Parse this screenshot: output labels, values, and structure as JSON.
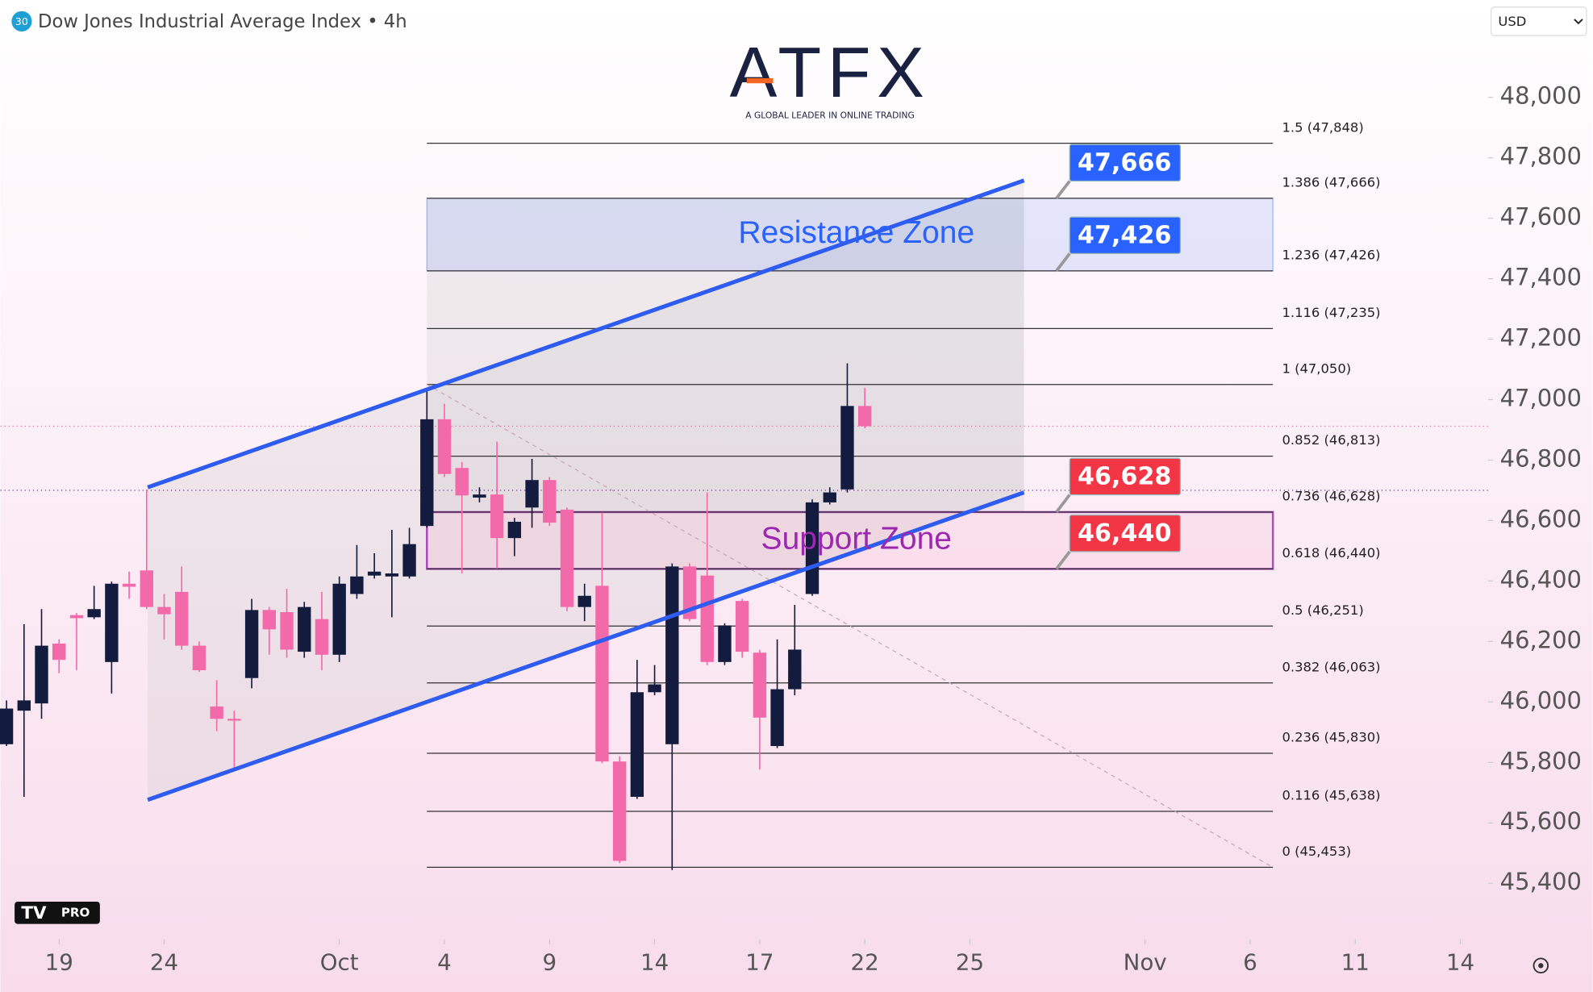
{
  "chart_data": {
    "type": "candlestick",
    "title": "Dow Jones Industrial Average Index • 4h",
    "symbol_badge": "30",
    "currency": "USD",
    "logo": "ATFX",
    "tagline": "A GLOBAL LEADER IN ONLINE TRADING",
    "platform_badge": "PRO",
    "up_color": "#131c3e",
    "down_color": "#f26aa9",
    "open": [
      45860,
      45971,
      45995,
      46193,
      46287,
      46280,
      46132,
      46391,
      46435,
      46314,
      46364,
      46186,
      45985,
      45944,
      46079,
      46304,
      46297,
      46166,
      46274,
      46156,
      46357,
      46418,
      46415,
      46415,
      46582,
      46935,
      46774,
      46676,
      46686,
      46542,
      46643,
      46734,
      46636,
      46314,
      46384,
      45803,
      45686,
      46032,
      45860,
      46448,
      46418,
      46132,
      46334,
      46163,
      45854,
      46042,
      46357,
      46660,
      46703,
      46979
    ],
    "high": [
      46005,
      46257,
      46307,
      46207,
      46294,
      46384,
      46398,
      46431,
      46703,
      46357,
      46448,
      46200,
      46072,
      45971,
      46341,
      46314,
      46374,
      46331,
      46364,
      46415,
      46519,
      46492,
      46569,
      46576,
      47029,
      46986,
      46794,
      46710,
      46861,
      46609,
      46804,
      46744,
      46643,
      46391,
      46626,
      45820,
      46139,
      46122,
      46458,
      46458,
      46693,
      46260,
      46341,
      46173,
      46207,
      46321,
      46670,
      46710,
      47120,
      47039
    ],
    "low": [
      45854,
      45686,
      45944,
      46095,
      46105,
      46274,
      46028,
      46341,
      46307,
      46207,
      46173,
      46099,
      45904,
      45776,
      46045,
      46156,
      46146,
      46146,
      46105,
      46132,
      46341,
      46408,
      46280,
      46408,
      46576,
      46744,
      46425,
      46660,
      46441,
      46482,
      46576,
      46582,
      46300,
      46267,
      45797,
      45467,
      45679,
      46022,
      45444,
      46267,
      46122,
      46122,
      46146,
      45776,
      45847,
      46022,
      46351,
      46653,
      46693,
      46905
    ],
    "close": [
      45978,
      46005,
      46186,
      46139,
      46277,
      46307,
      46391,
      46381,
      46314,
      46290,
      46186,
      46105,
      45944,
      45938,
      46304,
      46240,
      46173,
      46314,
      46156,
      46391,
      46415,
      46431,
      46425,
      46522,
      46935,
      46754,
      46683,
      46686,
      46542,
      46596,
      46734,
      46593,
      46314,
      46351,
      45803,
      45474,
      46032,
      46058,
      46448,
      46274,
      46132,
      46253,
      46166,
      45948,
      46042,
      46173,
      46660,
      46693,
      46979,
      46912
    ],
    "xlim": [
      -0.35,
      84.58
    ],
    "xticks": [
      {
        "value": 3,
        "label": "19"
      },
      {
        "value": 9,
        "label": "24"
      },
      {
        "value": 19,
        "label": "Oct"
      },
      {
        "value": 25,
        "label": "4"
      },
      {
        "value": 31,
        "label": "9"
      },
      {
        "value": 37,
        "label": "14"
      },
      {
        "value": 43,
        "label": "17"
      },
      {
        "value": 49,
        "label": "22"
      },
      {
        "value": 55,
        "label": "25"
      },
      {
        "value": 65,
        "label": "Nov"
      },
      {
        "value": 71,
        "label": "6"
      },
      {
        "value": 77,
        "label": "11"
      },
      {
        "value": 83,
        "label": "14"
      }
    ],
    "ylim": [
      45215,
      48322
    ],
    "yticks": [
      {
        "value": 45400,
        "label": "45,400"
      },
      {
        "value": 45600,
        "label": "45,600"
      },
      {
        "value": 45800,
        "label": "45,800"
      },
      {
        "value": 46000,
        "label": "46,000"
      },
      {
        "value": 46200,
        "label": "46,200"
      },
      {
        "value": 46400,
        "label": "46,400"
      },
      {
        "value": 46600,
        "label": "46,600"
      },
      {
        "value": 46800,
        "label": "46,800"
      },
      {
        "value": 47000,
        "label": "47,000"
      },
      {
        "value": 47200,
        "label": "47,200"
      },
      {
        "value": 47400,
        "label": "47,400"
      },
      {
        "value": 47600,
        "label": "47,600"
      },
      {
        "value": 47800,
        "label": "47,800"
      },
      {
        "value": 48000,
        "label": "48,000"
      }
    ],
    "fib_levels": [
      {
        "label": "1.5 (47,848)",
        "value": 47848
      },
      {
        "label": "1.386 (47,666)",
        "value": 47666
      },
      {
        "label": "1.236 (47,426)",
        "value": 47426
      },
      {
        "label": "1.116 (47,235)",
        "value": 47235
      },
      {
        "label": "1 (47,050)",
        "value": 47050
      },
      {
        "label": "0.852 (46,813)",
        "value": 46813
      },
      {
        "label": "0.736 (46,628)",
        "value": 46628
      },
      {
        "label": "0.618 (46,440)",
        "value": 46440
      },
      {
        "label": "0.5 (46,251)",
        "value": 46251
      },
      {
        "label": "0.382 (46,063)",
        "value": 46063
      },
      {
        "label": "0.236 (45,830)",
        "value": 45830
      },
      {
        "label": "0.116 (45,638)",
        "value": 45638
      },
      {
        "label": "0 (45,453)",
        "value": 45453
      }
    ],
    "fib_range": [
      24,
      72.3
    ],
    "zones": [
      {
        "label": "Resistance Zone",
        "low": 47426,
        "high": 47666,
        "color": "#2962ff"
      },
      {
        "label": "Support Zone",
        "low": 46440,
        "high": 46628,
        "color": "#9c27b0"
      }
    ],
    "price_labels": [
      {
        "value": 47666,
        "label": "47,666",
        "color": "#2962ff"
      },
      {
        "value": 47426,
        "label": "47,426",
        "color": "#2962ff"
      },
      {
        "value": 46628,
        "label": "46,628",
        "color": "#f23645"
      },
      {
        "value": 46440,
        "label": "46,440",
        "color": "#f23645"
      }
    ],
    "channel": {
      "color": "#2f5cf0",
      "upper": [
        [
          8.06,
          46710
        ],
        [
          58.09,
          47725
        ]
      ],
      "lower": [
        [
          8.06,
          45676
        ],
        [
          58.09,
          46693
        ]
      ]
    },
    "reference_line": 46700
  }
}
